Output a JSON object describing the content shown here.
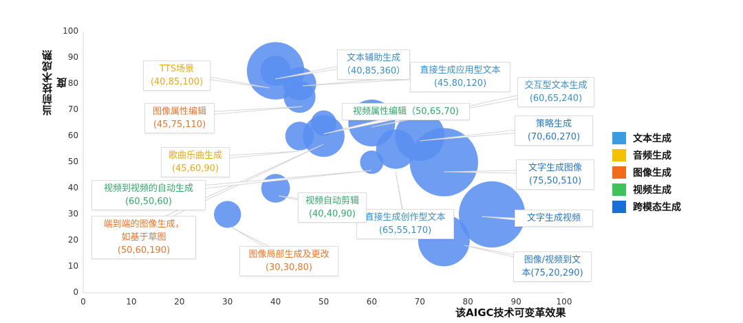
{
  "chart_data": {
    "type": "bubble",
    "title": "",
    "xlabel": "该AIGC技术可变革效果",
    "ylabel": "当前技术成熟度",
    "xlim": [
      0,
      100
    ],
    "ylim": [
      0,
      100
    ],
    "x_ticks": [
      "0",
      "10",
      "20",
      "30",
      "40",
      "50",
      "60",
      "70",
      "80",
      "90",
      "100"
    ],
    "y_ticks": [
      "0",
      "10",
      "20",
      "30",
      "40",
      "50",
      "60",
      "70",
      "80",
      "90",
      "100"
    ],
    "grid": false,
    "legend_position": "right",
    "bubble_color": "#5b8ff0",
    "points": [
      {
        "label": "TTS场景",
        "x": 40,
        "y": 85,
        "size": 100,
        "category": "音频生成",
        "text": "TTS场景",
        "coords": "(40,85,100)"
      },
      {
        "label": "文本辅助生成",
        "x": 40,
        "y": 85,
        "size": 360,
        "category": "文本生成",
        "text": "文本辅助生成",
        "coords": "（40,85,360）"
      },
      {
        "label": "直接生成应用型文本",
        "x": 45,
        "y": 80,
        "size": 120,
        "category": "文本生成",
        "text": "直接生成应用型文本",
        "coords": "(45.80,120)"
      },
      {
        "label": "图像属性编辑",
        "x": 45,
        "y": 75,
        "size": 110,
        "category": "图像生成",
        "text": "图像属性编辑",
        "coords": "(45,75,110)"
      },
      {
        "label": "交互型文本生成",
        "x": 60,
        "y": 65,
        "size": 240,
        "category": "文本生成",
        "text": "交互型文本生成",
        "coords": "(60,65,240)"
      },
      {
        "label": "视频属性编辑",
        "x": 50,
        "y": 65,
        "size": 70,
        "category": "视频生成",
        "text": "视频属性编辑（50,65,70)",
        "coords": ""
      },
      {
        "label": "策略生成",
        "x": 70,
        "y": 60,
        "size": 270,
        "category": "跨模态生成",
        "text": "策略生成",
        "coords": "(70,60,270)"
      },
      {
        "label": "歌曲乐曲生成",
        "x": 45,
        "y": 60,
        "size": 90,
        "category": "音频生成",
        "text": "歌曲乐曲生成",
        "coords": "(45,60,90)"
      },
      {
        "label": "端到端的图像生成，如基于草图",
        "x": 50,
        "y": 60,
        "size": 190,
        "category": "图像生成",
        "text": "端到端的图像生成，",
        "text2": "如基于草图",
        "coords": "(50,60,190)"
      },
      {
        "label": "文字生成图像",
        "x": 75,
        "y": 50,
        "size": 510,
        "category": "跨模态生成",
        "text": "文字生成图像",
        "coords": "(75,50,510)"
      },
      {
        "label": "视频到视频的自动生成",
        "x": 60,
        "y": 50,
        "size": 60,
        "category": "视频生成",
        "text": "视频到视频的自动生成",
        "coords": "(60,50,60)"
      },
      {
        "label": "直接生成创作型文本",
        "x": 65,
        "y": 55,
        "size": 170,
        "category": "文本生成",
        "text": "直接生成创作型文本",
        "coords": "(65,55,170)"
      },
      {
        "label": "视频自动剪辑",
        "x": 40,
        "y": 40,
        "size": 90,
        "category": "视频生成",
        "text": "视频自动剪辑",
        "coords": "(40,40,90)"
      },
      {
        "label": "文字生成视频",
        "x": 85,
        "y": 30,
        "size": 480,
        "category": "跨模态生成",
        "text": "文字生成视频",
        "coords": ""
      },
      {
        "label": "图像局部生成及更改",
        "x": 30,
        "y": 30,
        "size": 80,
        "category": "图像生成",
        "text": "图像局部生成及更改",
        "coords": "(30,30,80)"
      },
      {
        "label": "图像/视频到文本",
        "x": 75,
        "y": 20,
        "size": 290,
        "category": "跨模态生成",
        "text": "图像/视频到文",
        "text2": "本(75,20,290)",
        "coords": ""
      }
    ]
  },
  "legend": [
    {
      "label": "文本生成",
      "color": "#3a9de0"
    },
    {
      "label": "音频生成",
      "color": "#f2c200"
    },
    {
      "label": "图像生成",
      "color": "#f26a1b"
    },
    {
      "label": "视频生成",
      "color": "#3ec25a"
    },
    {
      "label": "跨模态生成",
      "color": "#1a6fd6"
    }
  ],
  "text_colors": {
    "文本生成": "#3a8fc8",
    "音频生成": "#e6a817",
    "图像生成": "#e8742a",
    "视频生成": "#2eaa6a",
    "跨模态生成": "#2a78c0"
  }
}
